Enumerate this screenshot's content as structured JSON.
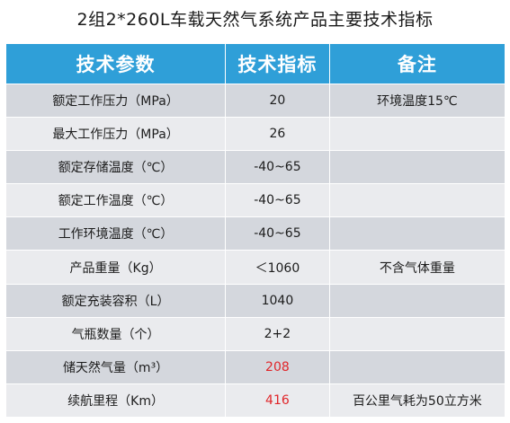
{
  "title": "2组2*260L车载天然气系统产品主要技术指标",
  "colors": {
    "header_bg": "#2f9fd8",
    "row_dark": "#d4d7dd",
    "row_light": "#eaebee",
    "highlight_red": "#e0262a"
  },
  "table": {
    "headers": [
      "技术参数",
      "技术指标",
      "备注"
    ],
    "rows": [
      {
        "param": "额定工作压力（MPa）",
        "value": "20",
        "note": "环境温度15℃",
        "highlight": false
      },
      {
        "param": "最大工作压力（MPa）",
        "value": "26",
        "note": "",
        "highlight": false
      },
      {
        "param": "额定存储温度（℃）",
        "value": "-40~65",
        "note": "",
        "highlight": false
      },
      {
        "param": "额定工作温度（℃）",
        "value": "-40~65",
        "note": "",
        "highlight": false
      },
      {
        "param": "工作环境温度（℃）",
        "value": "-40~65",
        "note": "",
        "highlight": false
      },
      {
        "param": "产品重量（Kg）",
        "value": "＜1060",
        "note": "不含气体重量",
        "highlight": false
      },
      {
        "param": "额定充装容积（L）",
        "value": "1040",
        "note": "",
        "highlight": false
      },
      {
        "param": "气瓶数量（个）",
        "value": "2+2",
        "note": "",
        "highlight": false
      },
      {
        "param": "储天然气量（m³）",
        "value": "208",
        "note": "",
        "highlight": true
      },
      {
        "param": "续航里程（Km）",
        "value": "416",
        "note": "百公里气耗为50立方米",
        "highlight": true
      }
    ]
  }
}
